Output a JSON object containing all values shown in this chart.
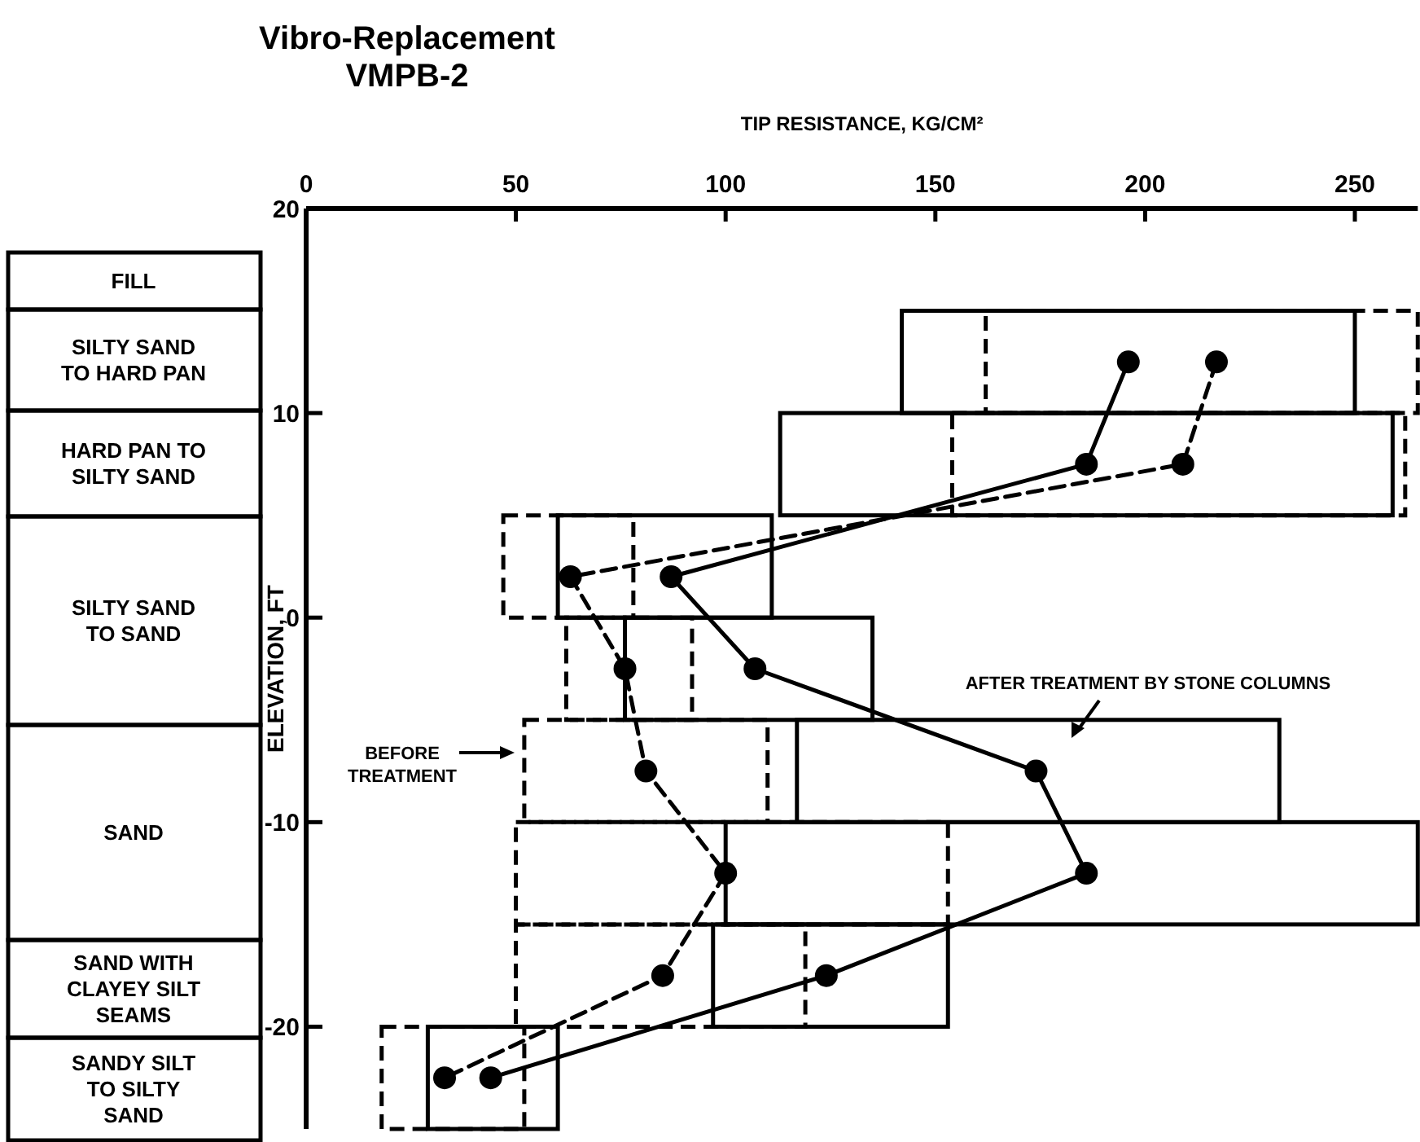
{
  "chart_data": {
    "type": "line",
    "orientation": "horizontal",
    "title": "Vibro-Replacement",
    "subtitle": "VMPB-2",
    "xlabel": "TIP RESISTANCE, KG/CM²",
    "ylabel": "ELEVATION, FT",
    "xlim": [
      0,
      265
    ],
    "xticks": [
      0,
      50,
      100,
      150,
      200,
      250
    ],
    "ylim": [
      -25,
      20
    ],
    "yticks": [
      20,
      10,
      0,
      -10,
      -20
    ],
    "series": [
      {
        "type": "bar",
        "line_style": "solid",
        "color": "#000000",
        "x": [
          12.5,
          7.5,
          2.5,
          -2.5,
          -7.5,
          -12.5,
          -17.5,
          -22.5
        ],
        "base": [
          142,
          113,
          60,
          76,
          117,
          100,
          97,
          29
        ],
        "values": [
          108,
          146,
          51,
          59,
          115,
          165,
          56,
          31
        ]
      },
      {
        "type": "bar",
        "line_style": "dashed",
        "color": "#000000",
        "x": [
          12.5,
          7.5,
          2.5,
          -2.5,
          -7.5,
          -12.5,
          -17.5,
          -22.5
        ],
        "base": [
          162,
          154,
          47,
          62,
          52,
          50,
          50,
          18
        ],
        "values": [
          103,
          108,
          31,
          30,
          58,
          103,
          69,
          34
        ]
      },
      {
        "line_style": "solid",
        "marker": "circle",
        "color": "#000000",
        "x": [
          12.5,
          7.5,
          2,
          -2.5,
          -7.5,
          -12.5,
          -17.5,
          -22.5
        ],
        "values": [
          196,
          186,
          87,
          107,
          174,
          186,
          124,
          44
        ]
      },
      {
        "line_style": "dashed",
        "marker": "circle",
        "color": "#000000",
        "x": [
          12.5,
          7.5,
          2,
          -2.5,
          -7.5,
          -12.5,
          -17.5,
          -22.5
        ],
        "values": [
          217,
          209,
          63,
          76,
          81,
          100,
          85,
          33
        ]
      }
    ],
    "annotations": [
      "BEFORE TREATMENT",
      "AFTER TREATMENT BY STONE COLUMNS",
      "FILL",
      "SILTY SAND TO HARD PAN",
      "HARD PAN TO SILTY SAND",
      "SILTY SAND TO SAND",
      "SAND",
      "SAND WITH CLAYEY SILT SEAMS",
      "SANDY SILT TO SILTY SAND"
    ]
  }
}
